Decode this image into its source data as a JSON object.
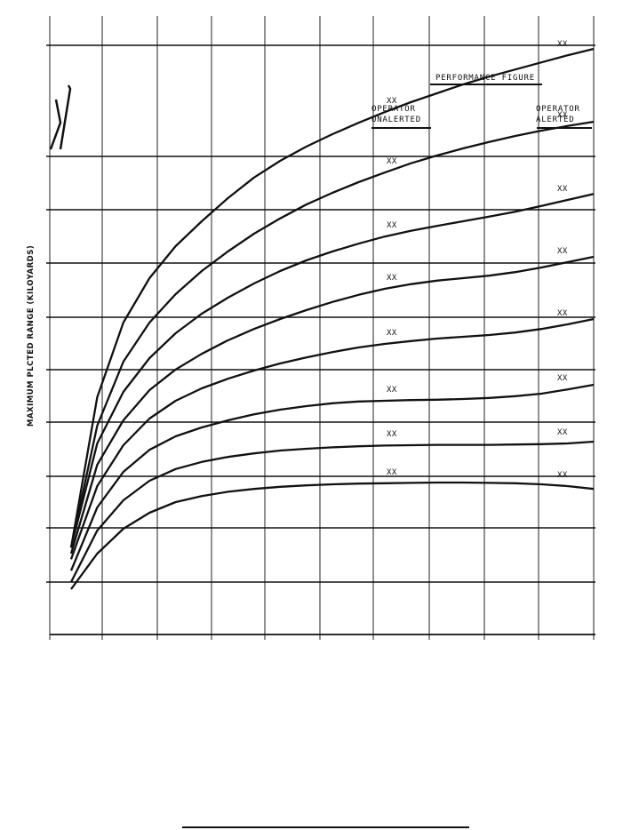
{
  "chart_data": {
    "type": "line",
    "ylabel": "MAXIMUM PLCTED RANGE (KILOYARDS)",
    "grid": true,
    "header": {
      "title": "PERFORMANCE FIGURE",
      "left_label": [
        "OPERATOR",
        "UNALERTED"
      ],
      "right_label": [
        "OPERATOR",
        "ALERTED"
      ]
    },
    "mark_text": "XX",
    "x": [
      0,
      0.5,
      1,
      1.5,
      2,
      2.5,
      3,
      3.5,
      4,
      4.5,
      5,
      5.5,
      6,
      6.5,
      7,
      7.5,
      8,
      8.5,
      9,
      9.5,
      10
    ],
    "series": [
      {
        "values": [
          0.97,
          5.2,
          7.3,
          8.55,
          9.45,
          10.15,
          10.8,
          11.38,
          11.85,
          12.25,
          12.6,
          12.92,
          13.22,
          13.5,
          13.75,
          14.0,
          14.22,
          14.42,
          14.62,
          14.82,
          15.0
        ]
      },
      {
        "values": [
          0.97,
          4.4,
          6.2,
          7.3,
          8.1,
          8.75,
          9.3,
          9.8,
          10.23,
          10.62,
          10.95,
          11.25,
          11.52,
          11.78,
          12.0,
          12.2,
          12.38,
          12.55,
          12.7,
          12.83,
          12.95
        ]
      },
      {
        "values": [
          0.97,
          3.9,
          5.35,
          6.3,
          7.0,
          7.55,
          8.0,
          8.4,
          8.75,
          9.05,
          9.3,
          9.52,
          9.72,
          9.88,
          10.02,
          10.15,
          10.28,
          10.42,
          10.58,
          10.75,
          10.92
        ]
      },
      {
        "values": [
          0.8,
          3.3,
          4.55,
          5.4,
          5.98,
          6.42,
          6.8,
          7.12,
          7.4,
          7.65,
          7.88,
          8.08,
          8.25,
          8.38,
          8.48,
          8.55,
          8.62,
          8.72,
          8.85,
          9.0,
          9.15
        ]
      },
      {
        "values": [
          0.64,
          2.7,
          3.85,
          4.6,
          5.1,
          5.45,
          5.72,
          5.95,
          6.15,
          6.32,
          6.47,
          6.6,
          6.7,
          6.78,
          6.85,
          6.9,
          6.95,
          7.02,
          7.12,
          7.25,
          7.4
        ]
      },
      {
        "values": [
          0.32,
          2.1,
          3.1,
          3.72,
          4.1,
          4.35,
          4.55,
          4.72,
          4.85,
          4.95,
          5.03,
          5.08,
          5.1,
          5.12,
          5.13,
          5.15,
          5.18,
          5.23,
          5.3,
          5.42,
          5.55
        ]
      },
      {
        "values": [
          0.0,
          1.45,
          2.3,
          2.85,
          3.18,
          3.38,
          3.52,
          3.62,
          3.7,
          3.75,
          3.79,
          3.82,
          3.84,
          3.85,
          3.86,
          3.86,
          3.86,
          3.87,
          3.88,
          3.9,
          3.95
        ]
      },
      {
        "values": [
          -0.2,
          0.8,
          1.5,
          1.95,
          2.25,
          2.42,
          2.54,
          2.62,
          2.68,
          2.72,
          2.75,
          2.77,
          2.78,
          2.79,
          2.8,
          2.8,
          2.79,
          2.78,
          2.75,
          2.7,
          2.62
        ]
      }
    ]
  }
}
